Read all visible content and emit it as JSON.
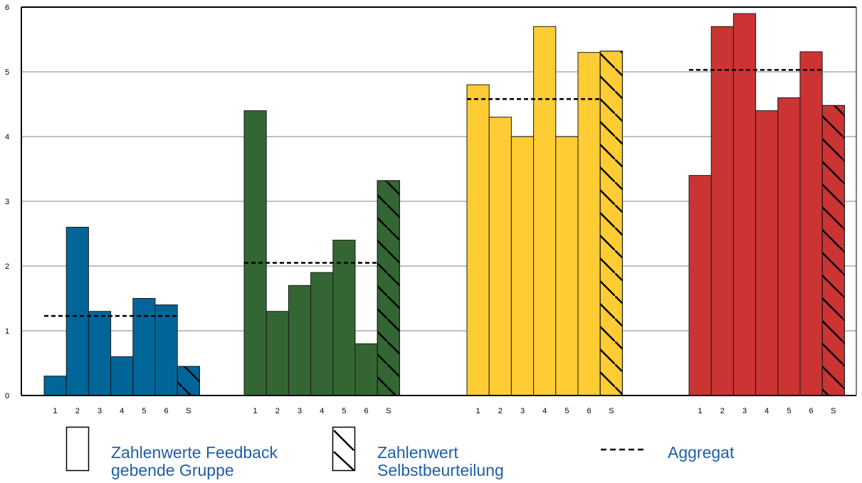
{
  "chart_data": {
    "type": "bar",
    "ylim": [
      0,
      6
    ],
    "yticks": [
      "0",
      "1",
      "2",
      "3",
      "4",
      "5",
      "6"
    ],
    "grid": true,
    "groups": [
      {
        "color": "#006699",
        "categories": [
          "1",
          "2",
          "3",
          "4",
          "5",
          "6",
          "S"
        ],
        "values": [
          0.3,
          2.6,
          1.3,
          0.6,
          1.5,
          1.4,
          0.45
        ],
        "aggregate": 1.23
      },
      {
        "color": "#336633",
        "categories": [
          "1",
          "2",
          "3",
          "4",
          "5",
          "6",
          "S"
        ],
        "values": [
          4.4,
          1.3,
          1.7,
          1.9,
          2.4,
          0.8,
          3.32
        ],
        "aggregate": 2.05
      },
      {
        "color": "#ffcc33",
        "categories": [
          "1",
          "2",
          "3",
          "4",
          "5",
          "6",
          "S"
        ],
        "values": [
          4.8,
          4.3,
          4.0,
          5.7,
          4.0,
          5.3,
          5.32
        ],
        "aggregate": 4.58
      },
      {
        "color": "#cc3333",
        "categories": [
          "1",
          "2",
          "3",
          "4",
          "5",
          "6",
          "S"
        ],
        "values": [
          3.4,
          5.7,
          5.9,
          4.4,
          4.6,
          5.31,
          4.48
        ],
        "aggregate": 5.03
      }
    ]
  },
  "legend": {
    "feedback": {
      "line1": "Zahlenwerte Feedback",
      "line2": "gebende Gruppe",
      "icon": "empty-bar"
    },
    "self": {
      "line1": "Zahlenwert",
      "line2": "Selbstbeurteilung",
      "icon": "hatched-bar"
    },
    "aggregate": {
      "line1": "Aggregat",
      "icon": "dashed-line"
    }
  },
  "colors": {
    "text": "#1f5ea8",
    "grid": "#c0c0c0"
  }
}
